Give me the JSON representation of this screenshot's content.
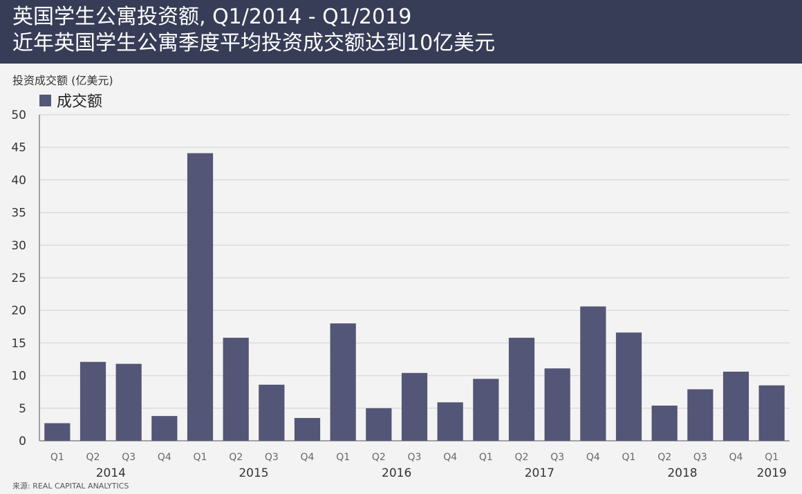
{
  "header": {
    "title": "英国学生公寓投资额, Q1/2014 - Q1/2019",
    "subtitle": "近年英国学生公寓季度平均投资成交额达到10亿美元"
  },
  "source": "来源: REAL CAPITAL ANALYTICS",
  "colors": {
    "header_bg": "#373d57",
    "bar": "#535676",
    "background": "#f3f3f3",
    "grid": "#dcdcdc"
  },
  "chart_data": {
    "type": "bar",
    "ylabel": "投资成交额 (亿美元)",
    "xlabel": "",
    "ylim": [
      0,
      50
    ],
    "yticks": [
      0,
      5,
      10,
      15,
      20,
      25,
      30,
      35,
      40,
      45,
      50
    ],
    "grid": true,
    "legend_position": "top-left",
    "categories": [
      "Q1",
      "Q2",
      "Q3",
      "Q4",
      "Q1",
      "Q2",
      "Q3",
      "Q4",
      "Q1",
      "Q2",
      "Q3",
      "Q4",
      "Q1",
      "Q2",
      "Q3",
      "Q4",
      "Q1",
      "Q2",
      "Q3",
      "Q4",
      "Q1"
    ],
    "year_labels": [
      "2014",
      "2015",
      "2016",
      "2017",
      "2018",
      "2019"
    ],
    "series": [
      {
        "name": "成交额",
        "values": [
          2.7,
          12.1,
          11.8,
          3.8,
          44.1,
          15.8,
          8.6,
          3.5,
          18.0,
          5.0,
          10.4,
          5.9,
          9.5,
          15.8,
          11.1,
          20.6,
          16.6,
          5.4,
          7.9,
          10.6,
          8.5
        ]
      }
    ]
  }
}
